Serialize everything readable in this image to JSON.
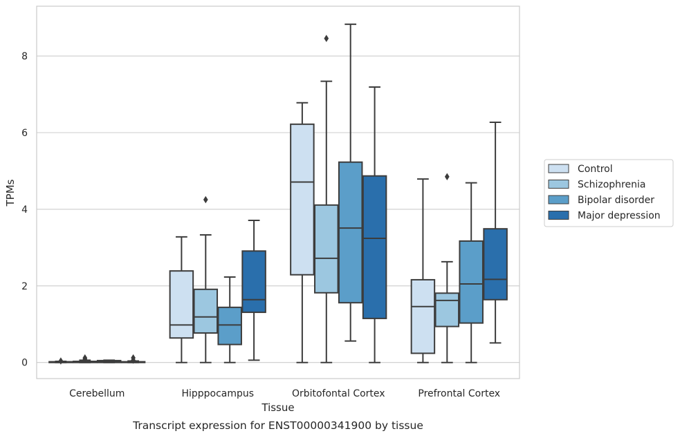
{
  "chart_data": {
    "type": "box",
    "title": "",
    "caption": "Transcript expression for ENST00000341900 by tissue",
    "xlabel": "Tissue",
    "ylabel": "TPMs",
    "ylim": [
      -0.42,
      9.3
    ],
    "yticks": [
      0,
      2,
      4,
      6,
      8
    ],
    "grid": "horizontal",
    "legend_position": "right",
    "categories": [
      "Cerebellum",
      "Hipppocampus",
      "Orbitofontal Cortex",
      "Prefrontal Cortex"
    ],
    "series": [
      {
        "name": "Control",
        "color": "#cde0f1",
        "boxes": [
          {
            "whislo": 0,
            "q1": 0,
            "med": 0.01,
            "q3": 0.02,
            "whishi": 0.03,
            "fliers": [
              0.04
            ]
          },
          {
            "whislo": 0,
            "q1": 0.64,
            "med": 0.98,
            "q3": 2.39,
            "whishi": 3.28,
            "fliers": []
          },
          {
            "whislo": 0,
            "q1": 2.29,
            "med": 4.71,
            "q3": 6.22,
            "whishi": 6.78,
            "fliers": []
          },
          {
            "whislo": 0,
            "q1": 0.24,
            "med": 1.46,
            "q3": 2.16,
            "whishi": 4.79,
            "fliers": []
          }
        ]
      },
      {
        "name": "Schizophrenia",
        "color": "#9cc7e0",
        "boxes": [
          {
            "whislo": 0,
            "q1": 0,
            "med": 0.01,
            "q3": 0.03,
            "whishi": 0.06,
            "fliers": [
              0.09,
              0.12
            ]
          },
          {
            "whislo": 0,
            "q1": 0.77,
            "med": 1.19,
            "q3": 1.91,
            "whishi": 3.33,
            "fliers": [
              4.25
            ]
          },
          {
            "whislo": 0,
            "q1": 1.82,
            "med": 2.72,
            "q3": 4.11,
            "whishi": 7.34,
            "fliers": [
              8.46
            ]
          },
          {
            "whislo": 0,
            "q1": 0.94,
            "med": 1.62,
            "q3": 1.81,
            "whishi": 2.63,
            "fliers": [
              4.85
            ]
          }
        ]
      },
      {
        "name": "Bipolar disorder",
        "color": "#5b9ec9",
        "boxes": [
          {
            "whislo": 0,
            "q1": 0,
            "med": 0.02,
            "q3": 0.05,
            "whishi": 0.06,
            "fliers": []
          },
          {
            "whislo": 0,
            "q1": 0.47,
            "med": 0.98,
            "q3": 1.44,
            "whishi": 2.23,
            "fliers": []
          },
          {
            "whislo": 0.56,
            "q1": 1.56,
            "med": 3.51,
            "q3": 5.23,
            "whishi": 8.83,
            "fliers": []
          },
          {
            "whislo": 0,
            "q1": 1.03,
            "med": 2.05,
            "q3": 3.17,
            "whishi": 4.69,
            "fliers": []
          }
        ]
      },
      {
        "name": "Major depression",
        "color": "#2a6fac",
        "boxes": [
          {
            "whislo": 0,
            "q1": 0,
            "med": 0.01,
            "q3": 0.02,
            "whishi": 0.04,
            "fliers": [
              0.06,
              0.12
            ]
          },
          {
            "whislo": 0.06,
            "q1": 1.31,
            "med": 1.64,
            "q3": 2.91,
            "whishi": 3.71,
            "fliers": []
          },
          {
            "whislo": 0,
            "q1": 1.15,
            "med": 3.24,
            "q3": 4.87,
            "whishi": 7.19,
            "fliers": []
          },
          {
            "whislo": 0.51,
            "q1": 1.64,
            "med": 2.17,
            "q3": 3.49,
            "whishi": 6.27,
            "fliers": []
          }
        ]
      }
    ]
  }
}
